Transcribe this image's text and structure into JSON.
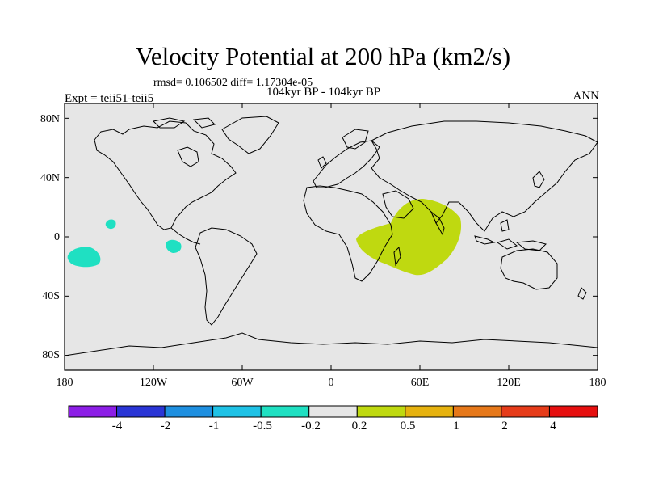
{
  "title": "Velocity Potential at 200 hPa (km2/s)",
  "stats": "rmsd= 0.106502 diff= 1.17304e-05",
  "period": "104kyr BP - 104kyr BP",
  "experiment": "Expt = teii51-teii5",
  "season": "ANN",
  "map": {
    "projection": "cylindrical equidistant",
    "lon_range": [
      -180,
      180
    ],
    "lat_range": [
      -90,
      90
    ],
    "background_color": "#e6e6e6",
    "coast_color": "#000000",
    "y_ticks": [
      "80N",
      "40N",
      "0",
      "40S",
      "80S"
    ],
    "x_ticks": [
      "180",
      "120W",
      "60W",
      "0",
      "60E",
      "120E",
      "180"
    ]
  },
  "colorbar": {
    "colors": [
      "#8c1ee6",
      "#2a35d6",
      "#1e8fe0",
      "#1fc2e6",
      "#1fe0c2",
      "#e6e6e6",
      "#bfd910",
      "#e6b20f",
      "#e6781a",
      "#e63c1a",
      "#e60f0f"
    ],
    "labels": [
      "-4",
      "-2",
      "-1",
      "-0.5",
      "-0.2",
      "0.2",
      "0.5",
      "1",
      "2",
      "4"
    ]
  }
}
